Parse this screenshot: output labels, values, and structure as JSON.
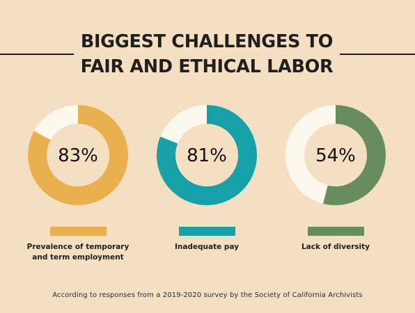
{
  "title_line1": "BIGGEST CHALLENGES TO",
  "title_line2": "FAIR AND ETHICAL LABOR",
  "footnote": "According to responses from a 2019-2020 survey by the Society of California Archivists",
  "colors": {
    "background": "#f5dfc2",
    "ring_remainder": "#fdf8ee",
    "orange": "#eab04f",
    "teal": "#16a0a8",
    "green": "#678c5d"
  },
  "chart_data": {
    "type": "pie",
    "title": "BIGGEST CHALLENGES TO FAIR AND ETHICAL LABOR",
    "series": [
      {
        "name": "Prevalence of temporary and term employment",
        "label_lines": [
          "Prevalence of temporary",
          "and term employment"
        ],
        "value": 83,
        "value_label": "83%",
        "color": "#eab04f"
      },
      {
        "name": "Inadequate pay",
        "label_lines": [
          "Inadequate pay"
        ],
        "value": 81,
        "value_label": "81%",
        "color": "#16a0a8"
      },
      {
        "name": "Lack of diversity",
        "label_lines": [
          "Lack of diversity"
        ],
        "value": 54,
        "value_label": "54%",
        "color": "#678c5d"
      }
    ]
  }
}
